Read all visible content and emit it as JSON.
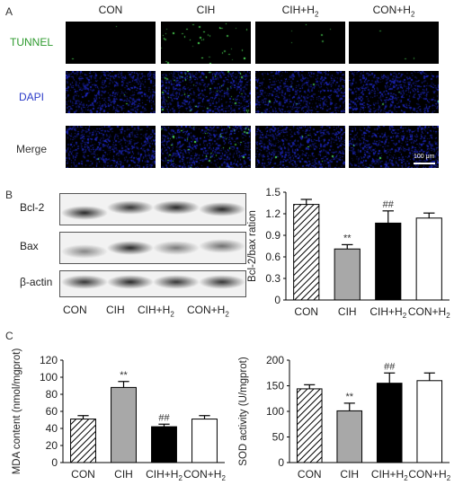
{
  "panel_a": {
    "label": "A",
    "columns": [
      "CON",
      "CIH",
      "CIH+H",
      "CON+H"
    ],
    "column_subscripts": [
      "",
      "",
      "2",
      "2"
    ],
    "rows": [
      {
        "label": "TUNNEL",
        "color": "#2e9a2e"
      },
      {
        "label": "DAPI",
        "color": "#2b3bc8"
      },
      {
        "label": "Merge",
        "color": "#333333"
      }
    ],
    "scale_bar": "100 μm"
  },
  "panel_b": {
    "label": "B",
    "blot_rows": [
      "Bcl-2",
      "Bax",
      "β-actin"
    ],
    "lanes": [
      "CON",
      "CIH",
      "CIH+H",
      "CON+H"
    ],
    "lane_subscripts": [
      "",
      "",
      "2",
      "2"
    ]
  },
  "panel_c": {
    "label": "C"
  },
  "chart_data": [
    {
      "type": "bar",
      "categories": [
        "CON",
        "CIH",
        "CIH+H2",
        "CON+H2"
      ],
      "values": [
        1.33,
        0.71,
        1.07,
        1.14
      ],
      "errors": [
        0.07,
        0.06,
        0.17,
        0.07
      ],
      "annotations": [
        "",
        "**",
        "##",
        ""
      ],
      "ylabel": "Bcl-2/bax ration",
      "ylim": [
        0,
        1.5
      ],
      "yticks": [
        "0",
        "0.3",
        "0.6",
        "0.9",
        "1.2",
        "1.5"
      ],
      "fills": [
        "hatch",
        "#a8a8a8",
        "#000000",
        "#ffffff"
      ]
    },
    {
      "type": "bar",
      "categories": [
        "CON",
        "CIH",
        "CIH+H2",
        "CON+H2"
      ],
      "values": [
        51,
        88,
        42,
        51
      ],
      "errors": [
        4,
        7,
        3,
        4
      ],
      "annotations": [
        "",
        "**",
        "##",
        ""
      ],
      "ylabel": "MDA content (nmol/mgprot)",
      "ylim": [
        0,
        120
      ],
      "yticks": [
        "0",
        "20",
        "40",
        "60",
        "80",
        "100",
        "120"
      ],
      "fills": [
        "hatch",
        "#a8a8a8",
        "#000000",
        "#ffffff"
      ]
    },
    {
      "type": "bar",
      "categories": [
        "CON",
        "CIH",
        "CIH+H2",
        "CON+H2"
      ],
      "values": [
        144,
        101,
        155,
        160
      ],
      "errors": [
        8,
        15,
        20,
        15
      ],
      "annotations": [
        "",
        "**",
        "##",
        ""
      ],
      "ylabel": "SOD activity (U/mgprot)",
      "ylim": [
        0,
        200
      ],
      "yticks": [
        "0",
        "50",
        "100",
        "150",
        "200"
      ],
      "fills": [
        "hatch",
        "#a8a8a8",
        "#000000",
        "#ffffff"
      ]
    }
  ]
}
